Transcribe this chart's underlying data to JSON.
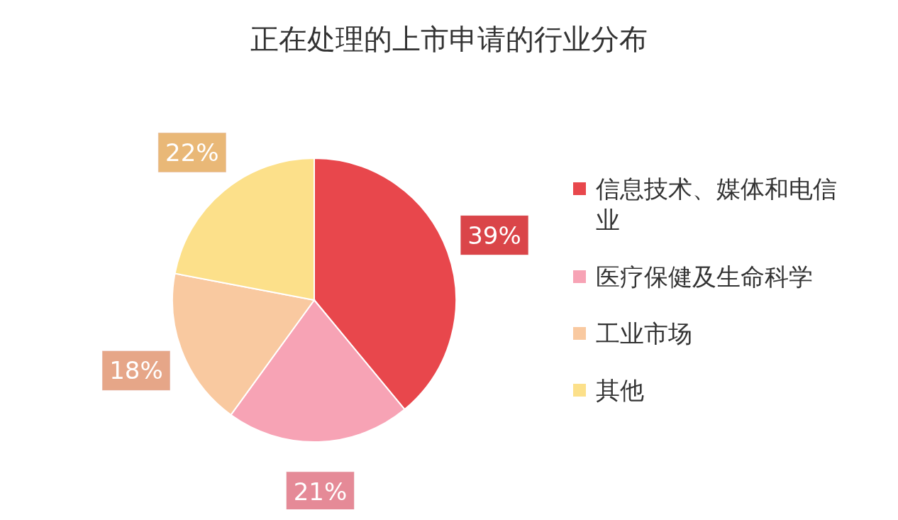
{
  "chart_data": {
    "type": "pie",
    "title": "正在处理的上市申请的行业分布",
    "categories": [
      "信息技术、媒体和电信业",
      "医疗保健及生命科学",
      "工业市场",
      "其他"
    ],
    "values": [
      39,
      21,
      18,
      22
    ],
    "colors": [
      "#e8474c",
      "#f7a3b5",
      "#f9c9a0",
      "#fce08a"
    ],
    "value_labels": [
      "39%",
      "21%",
      "18%",
      "22%"
    ],
    "legend": "right"
  }
}
